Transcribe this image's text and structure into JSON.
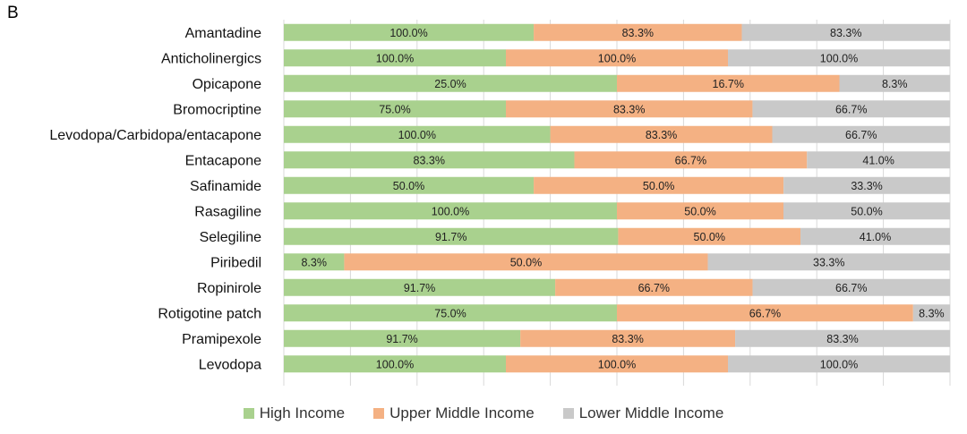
{
  "panel_label": "B",
  "colors": {
    "high_income": "#a9d18e",
    "upper_middle_income": "#f4b183",
    "lower_middle_income": "#c9c9c9",
    "gridline": "#d9d9d9"
  },
  "legend": [
    {
      "label": "High Income",
      "color": "#a9d18e"
    },
    {
      "label": "Upper Middle Income",
      "color": "#f4b183"
    },
    {
      "label": "Lower Middle Income",
      "color": "#c9c9c9"
    }
  ],
  "chart_data": {
    "type": "bar",
    "orientation": "horizontal",
    "stacked": "percent",
    "grid": "vertical gridlines",
    "legend_position": "bottom-center",
    "categories": [
      "Amantadine",
      "Anticholinergics",
      "Opicapone",
      "Bromocriptine",
      "Levodopa/Carbidopa/entacapone",
      "Entacapone",
      "Safinamide",
      "Rasagiline",
      "Selegiline",
      "Piribedil",
      "Ropinirole",
      "Rotigotine patch",
      "Pramipexole",
      "Levodopa"
    ],
    "series": [
      {
        "name": "High Income",
        "values": [
          100.0,
          100.0,
          25.0,
          75.0,
          100.0,
          83.3,
          50.0,
          100.0,
          91.7,
          8.3,
          91.7,
          75.0,
          91.7,
          100.0
        ],
        "labels": [
          "100.0%",
          "100.0%",
          "25.0%",
          "75.0%",
          "100.0%",
          "83.3%",
          "50.0%",
          "100.0%",
          "91.7%",
          "8.3%",
          "91.7%",
          "75.0%",
          "91.7%",
          "100.0%"
        ]
      },
      {
        "name": "Upper Middle Income",
        "values": [
          83.3,
          100.0,
          16.7,
          83.3,
          83.3,
          66.7,
          50.0,
          50.0,
          50.0,
          50.0,
          66.7,
          66.7,
          83.3,
          100.0
        ],
        "labels": [
          "83.3%",
          "100.0%",
          "16.7%",
          "83.3%",
          "83.3%",
          "66.7%",
          "50.0%",
          "50.0%",
          "50.0%",
          "50.0%",
          "66.7%",
          "66.7%",
          "83.3%",
          "100.0%"
        ]
      },
      {
        "name": "Lower Middle Income",
        "values": [
          83.3,
          100.0,
          8.3,
          66.7,
          66.7,
          41.0,
          33.3,
          50.0,
          41.0,
          33.3,
          66.7,
          8.3,
          83.3,
          100.0
        ],
        "labels": [
          "83.3%",
          "100.0%",
          "8.3%",
          "66.7%",
          "66.7%",
          "41.0%",
          "33.3%",
          "50.0%",
          "41.0%",
          "33.3%",
          "66.7%",
          "8.3%",
          "83.3%",
          "100.0%"
        ]
      }
    ]
  }
}
